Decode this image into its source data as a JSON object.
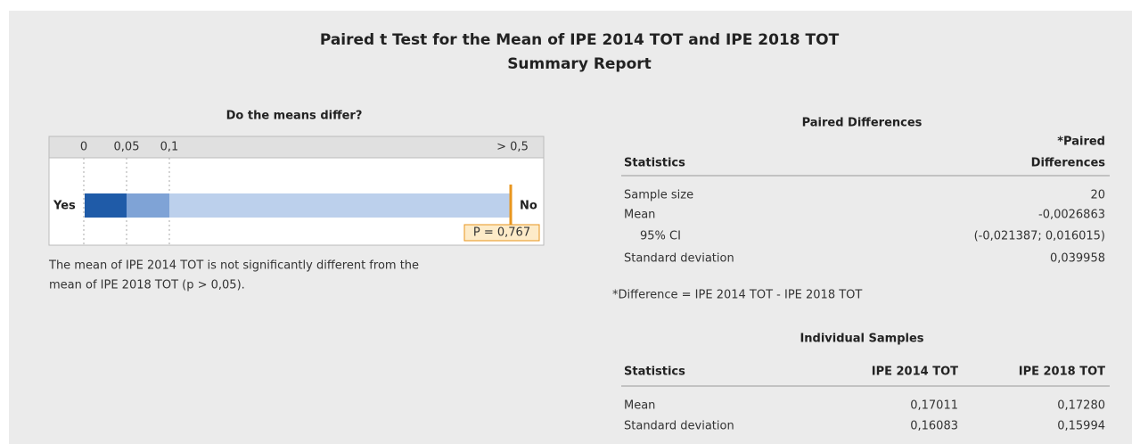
{
  "header": {
    "title": "Paired t Test for the Mean of IPE 2014 TOT and IPE 2018 TOT",
    "subtitle": "Summary Report"
  },
  "gauge": {
    "title": "Do the means differ?",
    "ticks": [
      "0",
      "0,05",
      "0,1",
      "> 0,5"
    ],
    "left_label": "Yes",
    "right_label": "No",
    "p_label": "P = 0,767"
  },
  "conclusion": [
    "The mean of IPE 2014 TOT is not significantly different from the",
    "mean of IPE 2018 TOT (p > 0,05)."
  ],
  "paired_table": {
    "title": "Paired Differences",
    "header": [
      "Statistics",
      "*Paired",
      "Differences"
    ],
    "rows": [
      [
        "Sample size",
        "20"
      ],
      [
        "Mean",
        "-0,0026863"
      ],
      [
        "95% CI",
        "(-0,021387; 0,016015)"
      ],
      [
        "Standard deviation",
        "0,039958"
      ]
    ]
  },
  "footnote": "*Difference = IPE 2014 TOT - IPE 2018 TOT",
  "individual_table": {
    "title": "Individual Samples",
    "header": [
      "Statistics",
      "IPE 2014 TOT",
      "IPE 2018 TOT"
    ],
    "rows": [
      [
        "Mean",
        "0,17011",
        "0,17280"
      ],
      [
        "Standard deviation",
        "0,16083",
        "0,15994"
      ]
    ]
  }
}
